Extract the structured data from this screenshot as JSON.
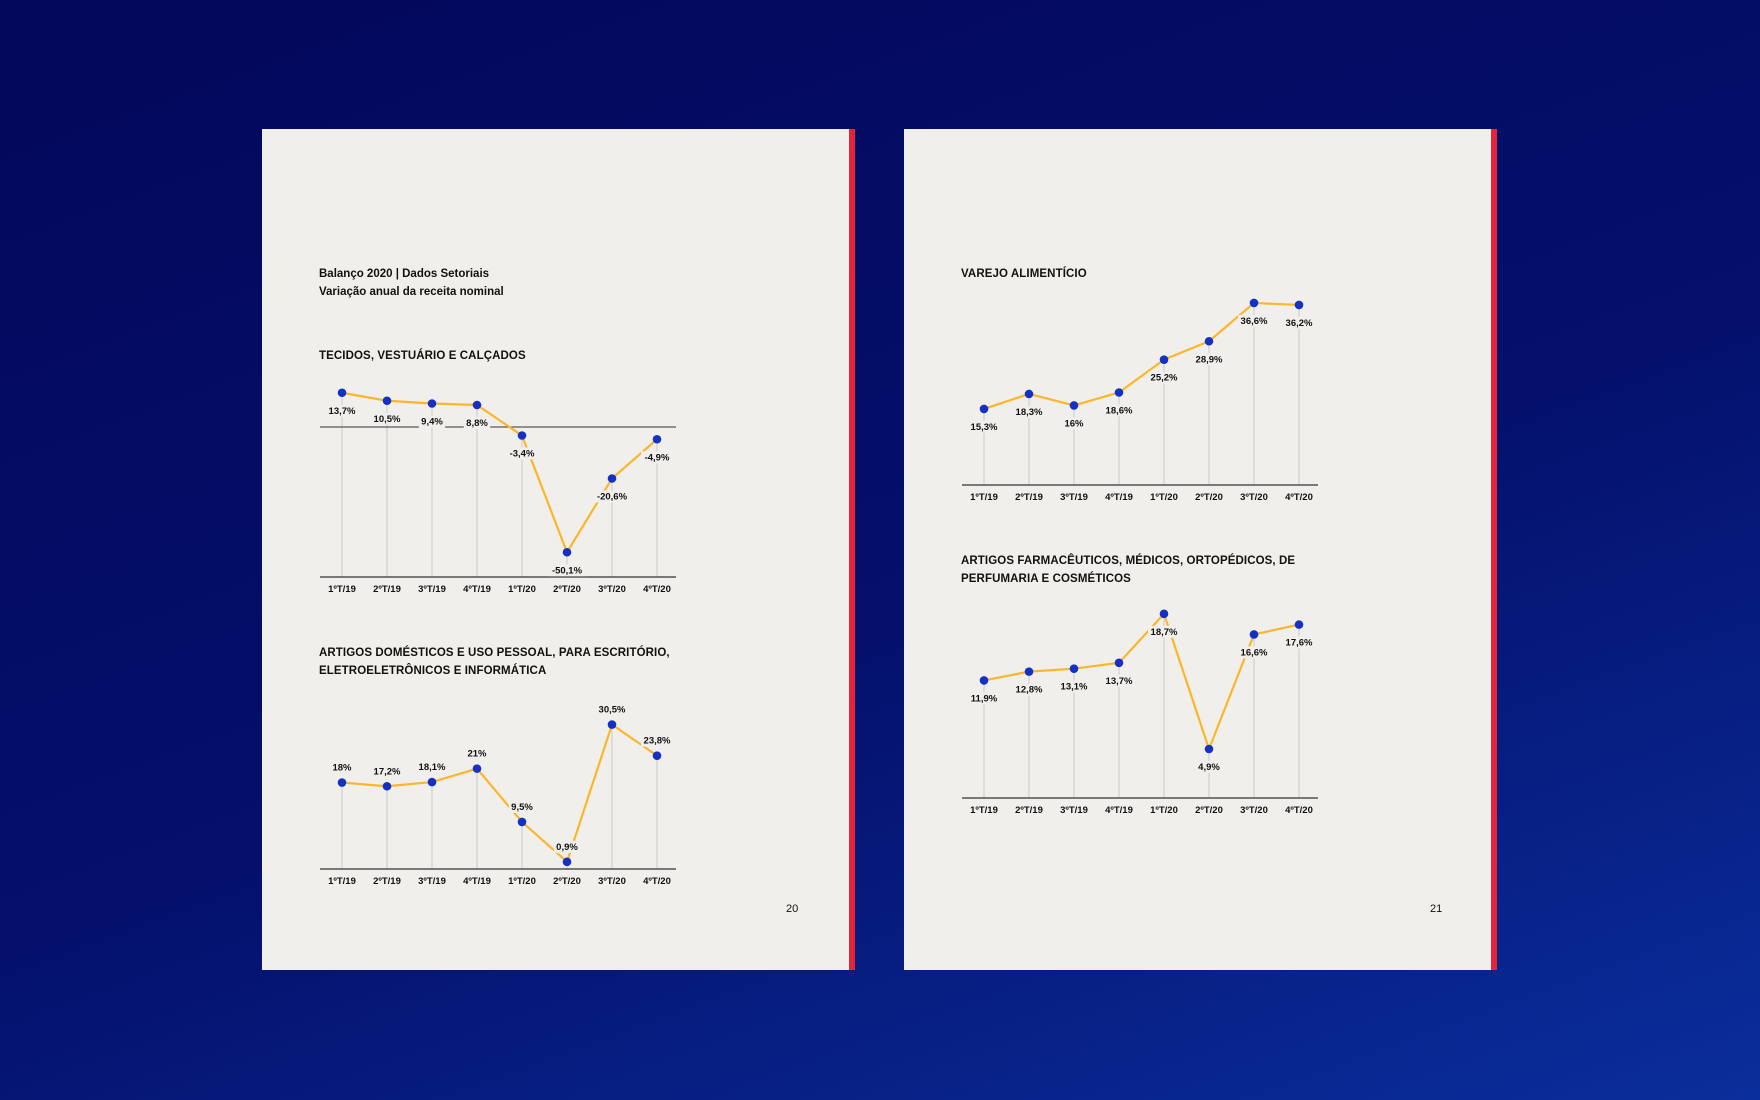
{
  "pages": {
    "left": {
      "header_line1": "Balanço 2020 | Dados Setoriais",
      "header_line2": "Variação anual da receita nominal",
      "page_number": "20"
    },
    "right": {
      "page_number": "21"
    }
  },
  "chart_data": [
    {
      "type": "line",
      "title": "TECIDOS, VESTUÁRIO E CALÇADOS",
      "categories": [
        "1ºT/19",
        "2ºT/19",
        "3ºT/19",
        "4ºT/19",
        "1ºT/20",
        "2ºT/20",
        "3ºT/20",
        "4ºT/20"
      ],
      "values": [
        13.7,
        10.5,
        9.4,
        8.8,
        -3.4,
        -50.1,
        -20.6,
        -4.9
      ],
      "value_labels": [
        "13,7%",
        "10,5%",
        "9,4%",
        "8,8%",
        "-3,4%",
        "-50,1%",
        "-20,6%",
        "-4,9%"
      ],
      "ylim": [
        -60,
        18
      ],
      "zero_line": true,
      "colors": {
        "line": "#fbb62a",
        "point": "#1431c4",
        "grid": "#c9c9c9",
        "axis": "#333333"
      }
    },
    {
      "type": "line",
      "title": "ARTIGOS DOMÉSTICOS E USO PESSOAL, PARA ESCRITÓRIO, ELETROELETRÔNICOS E INFORMÁTICA",
      "categories": [
        "1ºT/19",
        "2ºT/19",
        "3ºT/19",
        "4ºT/19",
        "1ºT/20",
        "2ºT/20",
        "3ºT/20",
        "4ºT/20"
      ],
      "values": [
        18,
        17.2,
        18.1,
        21,
        9.5,
        0.9,
        30.5,
        23.8
      ],
      "value_labels": [
        "18%",
        "17,2%",
        "18,1%",
        "21%",
        "9,5%",
        "0,9%",
        "30,5%",
        "23,8%"
      ],
      "ylim": [
        0,
        33
      ],
      "colors": {
        "line": "#fbb62a",
        "point": "#1431c4",
        "grid": "#c9c9c9",
        "axis": "#333333"
      }
    },
    {
      "type": "line",
      "title": "VAREJO ALIMENTÍCIO",
      "categories": [
        "1ºT/19",
        "2ºT/19",
        "3ºT/19",
        "4ºT/19",
        "1ºT/20",
        "2ºT/20",
        "3ºT/20",
        "4ºT/20"
      ],
      "values": [
        15.3,
        18.3,
        16,
        18.6,
        25.2,
        28.9,
        36.6,
        36.2
      ],
      "value_labels": [
        "15,3%",
        "18,3%",
        "16%",
        "18,6%",
        "25,2%",
        "28,9%",
        "36,6%",
        "36,2%"
      ],
      "ylim": [
        0,
        38
      ],
      "colors": {
        "line": "#fbb62a",
        "point": "#1431c4",
        "grid": "#c9c9c9",
        "axis": "#333333"
      }
    },
    {
      "type": "line",
      "title": "ARTIGOS FARMACÊUTICOS, MÉDICOS, ORTOPÉDICOS, DE PERFUMARIA E COSMÉTICOS",
      "categories": [
        "1ºT/19",
        "2ºT/19",
        "3ºT/19",
        "4ºT/19",
        "1ºT/20",
        "2ºT/20",
        "3ºT/20",
        "4ºT/20"
      ],
      "values": [
        11.9,
        12.8,
        13.1,
        13.7,
        18.7,
        4.9,
        16.6,
        17.6
      ],
      "value_labels": [
        "11,9%",
        "12,8%",
        "13,1%",
        "13,7%",
        "18,7%",
        "4,9%",
        "16,6%",
        "17,6%"
      ],
      "ylim": [
        0,
        19.5
      ],
      "colors": {
        "line": "#fbb62a",
        "point": "#1431c4",
        "grid": "#c9c9c9",
        "axis": "#333333"
      }
    }
  ]
}
